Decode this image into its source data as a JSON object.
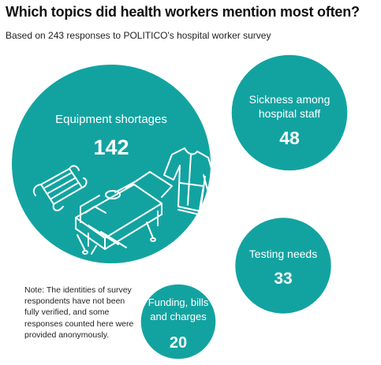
{
  "header": {
    "title": "Which topics did health workers mention most often?",
    "subtitle": "Based on 243 responses to POLITICO's hospital worker survey"
  },
  "colors": {
    "bubble": "#12a3a1",
    "icon_stroke": "#ffffff"
  },
  "chart_data": {
    "type": "bubble",
    "title": "Which topics did health workers mention most often?",
    "subtitle": "Based on 243 responses to POLITICO's hospital worker survey",
    "categories": [
      "Equipment shortages",
      "Sickness among hospital staff",
      "Testing needs",
      "Funding, bills and charges"
    ],
    "values": [
      142,
      48,
      33,
      20
    ],
    "icons": [
      "face-mask-icon",
      "hospital-bed-icon",
      "hospital-gown-icon"
    ]
  },
  "note": "Note: The identities of survey respondents have not been fully verified, and some responses counted here were provided anonymously."
}
